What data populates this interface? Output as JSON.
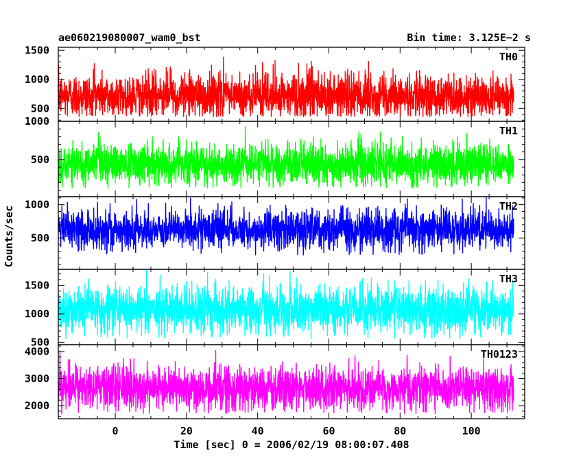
{
  "header": {
    "left": "ae060219080007_wam0_bst",
    "right": "Bin time: 3.125E−2 s"
  },
  "ylabel": "Counts/sec",
  "xlabel": "Time [sec] 0 = 2006/02/19 08:00:07.408",
  "chart_data": {
    "type": "line",
    "title": "ae060219080007_wam0_bst",
    "subtitle": "Bin time: 3.125E−2 s",
    "xlabel": "Time [sec] 0 = 2006/02/19 08:00:07.408",
    "ylabel": "Counts/sec",
    "xlim": [
      -16,
      115
    ],
    "x_ticks": [
      0,
      20,
      40,
      60,
      80,
      100
    ],
    "x_data_range": [
      -15.9,
      111.9
    ],
    "bin_time": 0.03125,
    "grid": false,
    "series": [
      {
        "name": "TH0",
        "color": "#ff0000",
        "ylim": [
          280,
          1550
        ],
        "y_ticks": [
          500,
          1000,
          1500
        ],
        "median": 720,
        "min": 350,
        "max": 1500
      },
      {
        "name": "TH1",
        "color": "#00ff00",
        "ylim": [
          15,
          1000
        ],
        "y_ticks": [
          500,
          1000
        ],
        "median": 440,
        "min": 120,
        "max": 960
      },
      {
        "name": "TH2",
        "color": "#0000ff",
        "ylim": [
          30,
          1120
        ],
        "y_ticks": [
          500,
          1000
        ],
        "median": 620,
        "min": 240,
        "max": 1120
      },
      {
        "name": "TH3",
        "color": "#00ffff",
        "ylim": [
          460,
          1780
        ],
        "y_ticks": [
          500,
          1000,
          1500
        ],
        "median": 1080,
        "min": 560,
        "max": 1780
      },
      {
        "name": "TH0123",
        "color": "#ff00ff",
        "ylim": [
          1520,
          4250
        ],
        "y_ticks": [
          2000,
          3000,
          4000
        ],
        "median": 2650,
        "min": 1700,
        "max": 4150
      }
    ]
  }
}
